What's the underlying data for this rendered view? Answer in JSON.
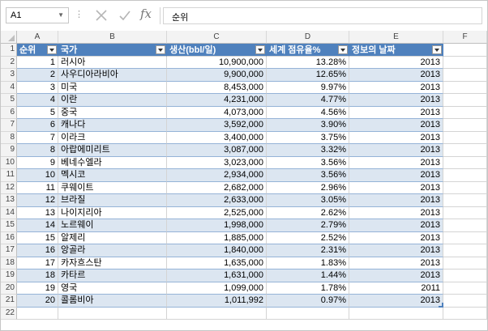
{
  "formula_bar": {
    "name_box": "A1",
    "fx_label": "fx",
    "formula": "순위",
    "dots": "⋮"
  },
  "columns": [
    "A",
    "B",
    "C",
    "D",
    "E",
    "F"
  ],
  "table_header": [
    "순위",
    "국가",
    "생산(bbl/일)",
    "세계 점유율%",
    "정보의 날짜"
  ],
  "rows": [
    [
      "1",
      "러시아",
      "10,900,000",
      "13.28%",
      "2013"
    ],
    [
      "2",
      "사우디아라비아",
      "9,900,000",
      "12.65%",
      "2013"
    ],
    [
      "3",
      "미국",
      "8,453,000",
      "9.97%",
      "2013"
    ],
    [
      "4",
      "이란",
      "4,231,000",
      "4.77%",
      "2013"
    ],
    [
      "5",
      "중국",
      "4,073,000",
      "4.56%",
      "2013"
    ],
    [
      "6",
      "캐나다",
      "3,592,000",
      "3.90%",
      "2013"
    ],
    [
      "7",
      "이라크",
      "3,400,000",
      "3.75%",
      "2013"
    ],
    [
      "8",
      "아랍에미리트",
      "3,087,000",
      "3.32%",
      "2013"
    ],
    [
      "9",
      "베네수엘라",
      "3,023,000",
      "3.56%",
      "2013"
    ],
    [
      "10",
      "멕시코",
      "2,934,000",
      "3.56%",
      "2013"
    ],
    [
      "11",
      "쿠웨이트",
      "2,682,000",
      "2.96%",
      "2013"
    ],
    [
      "12",
      "브라질",
      "2,633,000",
      "3.05%",
      "2013"
    ],
    [
      "13",
      "나이지리아",
      "2,525,000",
      "2.62%",
      "2013"
    ],
    [
      "14",
      "노르웨이",
      "1,998,000",
      "2.79%",
      "2013"
    ],
    [
      "15",
      "알제리",
      "1,885,000",
      "2.52%",
      "2013"
    ],
    [
      "16",
      "앙골라",
      "1,840,000",
      "2.31%",
      "2013"
    ],
    [
      "17",
      "카자흐스탄",
      "1,635,000",
      "1.83%",
      "2013"
    ],
    [
      "18",
      "카타르",
      "1,631,000",
      "1.44%",
      "2013"
    ],
    [
      "19",
      "영국",
      "1,099,000",
      "1.78%",
      "2011"
    ],
    [
      "20",
      "콜롬비아",
      "1,011,992",
      "0.97%",
      "2013"
    ]
  ],
  "row_numbers": [
    "1",
    "2",
    "3",
    "4",
    "5",
    "6",
    "7",
    "8",
    "9",
    "10",
    "11",
    "12",
    "13",
    "14",
    "15",
    "16",
    "17",
    "18",
    "19",
    "20",
    "21",
    "22"
  ],
  "colors": {
    "table_header": "#4f81bd",
    "band": "#dce6f1",
    "grid_header": "#f3f3f3"
  }
}
